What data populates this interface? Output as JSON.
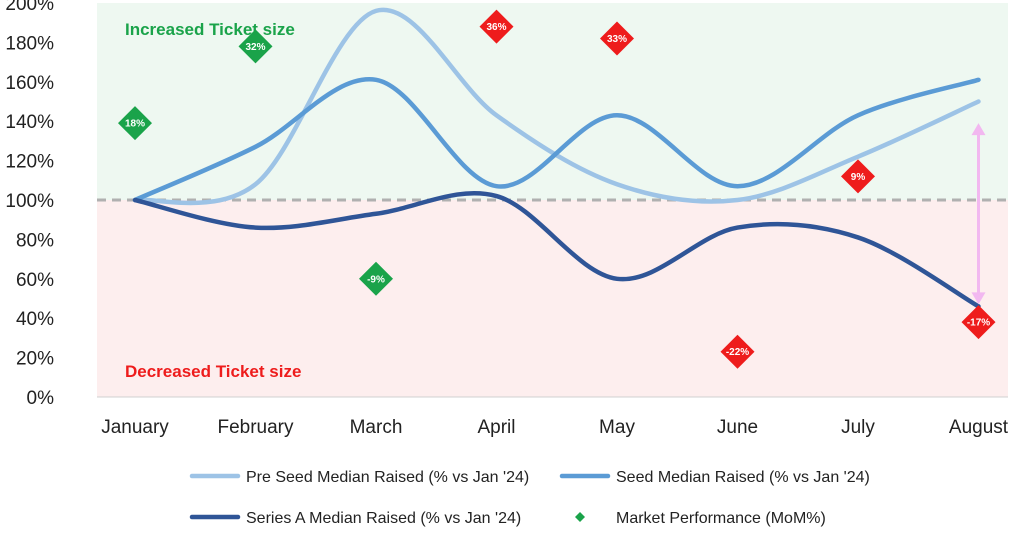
{
  "chart_data": {
    "type": "line",
    "categories": [
      "January",
      "February",
      "March",
      "April",
      "May",
      "June",
      "July",
      "August"
    ],
    "y_ticks": [
      "0%",
      "20%",
      "40%",
      "60%",
      "80%",
      "100%",
      "120%",
      "140%",
      "160%",
      "180%",
      "200%"
    ],
    "ylim": [
      0,
      200
    ],
    "reference_line": 100,
    "zones": {
      "upper": {
        "label": "Increased Ticket size",
        "color": "#1aa34a",
        "fill": "#eef8f1"
      },
      "lower": {
        "label": "Decreased Ticket size",
        "color": "#ee1c1c",
        "fill": "#fdeeee"
      }
    },
    "series": [
      {
        "name": "Pre Seed Median Raised (% vs Jan '24)",
        "color": "#9dc3e6",
        "values": [
          100,
          108,
          196,
          143,
          108,
          100,
          122,
          150
        ]
      },
      {
        "name": "Seed Median Raised (% vs Jan '24)",
        "color": "#5b9bd5",
        "values": [
          100,
          127,
          161,
          107,
          143,
          107,
          143,
          161
        ]
      },
      {
        "name": "Series A Median Raised (% vs Jan '24)",
        "color": "#2f5597",
        "values": [
          100,
          86,
          93,
          102,
          60,
          86,
          81,
          46
        ]
      }
    ],
    "market_performance": {
      "name": "Market Performance (MoM%)",
      "legend_color": "#1aa34a",
      "points": [
        {
          "category": "January",
          "y": 139,
          "label": "18%",
          "color": "#1aa34a"
        },
        {
          "category": "February",
          "y": 178,
          "label": "32%",
          "color": "#1aa34a"
        },
        {
          "category": "March",
          "y": 60,
          "label": "-9%",
          "color": "#1aa34a"
        },
        {
          "category": "April",
          "y": 188,
          "label": "36%",
          "color": "#ee1c1c"
        },
        {
          "category": "May",
          "y": 182,
          "label": "33%",
          "color": "#ee1c1c"
        },
        {
          "category": "June",
          "y": 23,
          "label": "-22%",
          "color": "#ee1c1c"
        },
        {
          "category": "July",
          "y": 112,
          "label": "9%",
          "color": "#ee1c1c"
        },
        {
          "category": "August",
          "y": 38,
          "label": "-17%",
          "color": "#ee1c1c"
        }
      ]
    },
    "range_arrow": {
      "category": "August",
      "from": 47,
      "to": 139,
      "color": "#f2b8f0"
    },
    "reference_color": "#b0b0b0"
  }
}
